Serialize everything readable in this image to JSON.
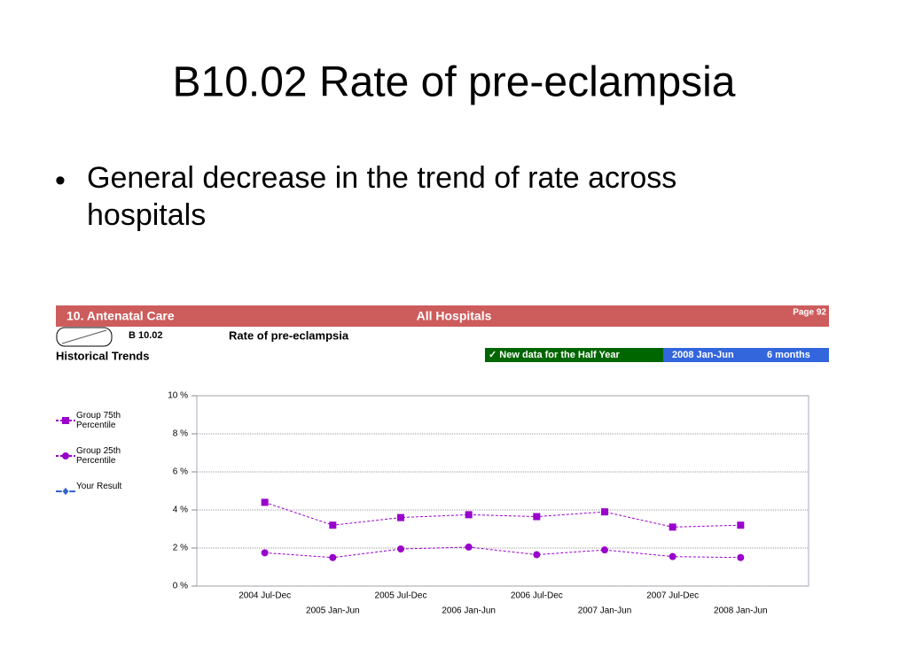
{
  "slide": {
    "title": "B10.02 Rate of pre-eclampsia",
    "bullet": "General decrease in the trend of rate across hospitals"
  },
  "report": {
    "section": "10. Antenatal Care",
    "scope": "All Hospitals",
    "page": "Page 92",
    "code": "B 10.02",
    "name": "Rate of pre-eclampsia",
    "subtitle": "Historical Trends",
    "new_data": "✓ New data for the Half Year",
    "period": "2008 Jan-Jun",
    "months": "6 months"
  },
  "chart_data": {
    "type": "line",
    "categories": [
      "2004 Jul-Dec",
      "2005 Jan-Jun",
      "2005 Jul-Dec",
      "2006 Jan-Jun",
      "2006 Jul-Dec",
      "2007 Jan-Jun",
      "2007 Jul-Dec",
      "2008 Jan-Jun"
    ],
    "series": [
      {
        "name": "Group 75th Percentile",
        "color": "#9900cc",
        "marker": "square",
        "values": [
          4.4,
          3.2,
          3.6,
          3.75,
          3.65,
          3.9,
          3.1,
          3.2
        ]
      },
      {
        "name": "Group 25th Percentile",
        "color": "#9900cc",
        "marker": "circle",
        "values": [
          1.75,
          1.5,
          1.95,
          2.05,
          1.65,
          1.9,
          1.55,
          1.5
        ]
      },
      {
        "name": "Your Result",
        "color": "#3366cc",
        "marker": "diamond",
        "values": [
          null,
          null,
          null,
          null,
          null,
          null,
          null,
          null
        ]
      }
    ],
    "ylim": [
      0,
      10
    ],
    "yticks": [
      {
        "value": 0,
        "label": "0 %"
      },
      {
        "value": 2,
        "label": "2 %"
      },
      {
        "value": 4,
        "label": "4 %"
      },
      {
        "value": 6,
        "label": "6 %"
      },
      {
        "value": 8,
        "label": "8 %"
      },
      {
        "value": 10,
        "label": "10 %"
      }
    ],
    "grid": true
  }
}
